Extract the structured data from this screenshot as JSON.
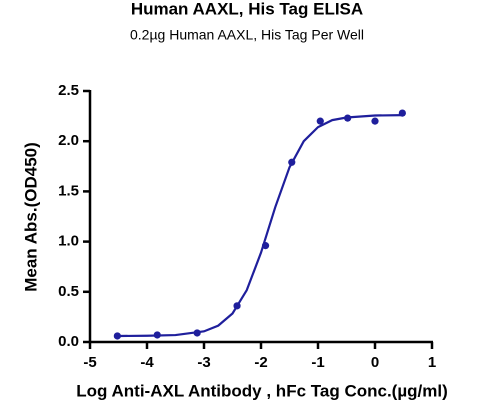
{
  "chart_data": {
    "type": "scatter",
    "title": "Human AAXL, His Tag ELISA",
    "subtitle": "0.2µg Human AAXL, His Tag Per Well",
    "x_label": "Log Anti-AXL Antibody , hFc Tag Conc.(µg/ml)",
    "y_label": "Mean Abs.(OD450)",
    "xlim": [
      -5,
      1
    ],
    "xticks": [
      -5,
      -4,
      -3,
      -2,
      -1,
      0,
      1
    ],
    "ylim": [
      0,
      2.5
    ],
    "yticks": [
      {
        "value": 0,
        "label": "0.0"
      },
      0.5,
      {
        "value": 1,
        "label": "1.0"
      },
      1.5,
      {
        "value": 2,
        "label": "2.0"
      },
      2.5
    ],
    "grid": false,
    "series": [
      {
        "style": "points",
        "color": "#1f1f9c",
        "x": [
          -4.52,
          -3.82,
          -3.12,
          -2.42,
          -1.92,
          -1.46,
          -0.96,
          -0.48,
          0,
          0.48
        ],
        "values": [
          0.06,
          0.07,
          0.09,
          0.36,
          0.96,
          1.79,
          2.2,
          2.23,
          2.2,
          2.28
        ]
      },
      {
        "style": "line",
        "color": "#1f1f9c",
        "x": [
          -4.5,
          -4,
          -3.5,
          -3,
          -2.75,
          -2.5,
          -2.25,
          -2,
          -1.75,
          -1.5,
          -1.25,
          -1,
          -0.75,
          -0.5,
          0,
          0.5
        ],
        "values": [
          0.06,
          0.062,
          0.069,
          0.106,
          0.163,
          0.284,
          0.516,
          0.89,
          1.343,
          1.74,
          2.0,
          2.14,
          2.21,
          2.236,
          2.256,
          2.26
        ]
      }
    ]
  }
}
